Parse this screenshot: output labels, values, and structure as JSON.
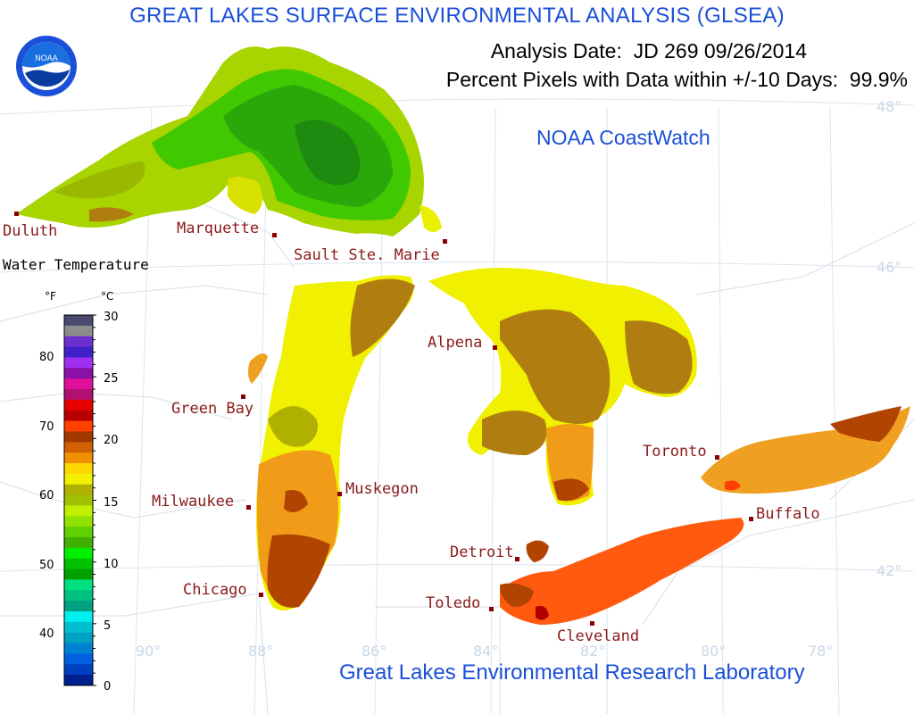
{
  "header": {
    "title": "GREAT LAKES SURFACE ENVIRONMENTAL ANALYSIS (GLSEA)",
    "analysis_date": "Analysis Date:  JD 269 09/26/2014",
    "percent_pixels": "Percent Pixels with Data within +/-10 Days:  99.9%",
    "coastwatch": "NOAA CoastWatch",
    "lab": "Great Lakes Environmental Research Laboratory"
  },
  "logo": {
    "text": "NOAA",
    "icon": "noaa-logo-icon"
  },
  "legend": {
    "title": "Water Temperature",
    "f_label": "°F",
    "c_label": "°C",
    "f_ticks": [
      "80",
      "70",
      "60",
      "50",
      "40"
    ],
    "c_ticks": [
      "30",
      "25",
      "20",
      "15",
      "10",
      "5",
      "0"
    ],
    "colors": [
      "#4a4a6e",
      "#8c8c8c",
      "#6e2fd0",
      "#4020c8",
      "#a030f0",
      "#8a10a8",
      "#e0109a",
      "#b01070",
      "#e80000",
      "#b80000",
      "#ff4000",
      "#a03800",
      "#d06000",
      "#f09000",
      "#ffd700",
      "#f0f000",
      "#b0b000",
      "#a0c000",
      "#c0f000",
      "#90e000",
      "#60d000",
      "#40b000",
      "#00f000",
      "#00c000",
      "#00a000",
      "#00e080",
      "#00c080",
      "#00a080",
      "#00f0f0",
      "#00c0d0",
      "#00a0c0",
      "#0080d0",
      "#0060e0",
      "#0040c0",
      "#002090"
    ]
  },
  "cities": {
    "duluth": "Duluth",
    "marquette": "Marquette",
    "sault": "Sault Ste. Marie",
    "alpena": "Alpena",
    "green_bay": "Green Bay",
    "milwaukee": "Milwaukee",
    "muskegon": "Muskegon",
    "toronto": "Toronto",
    "buffalo": "Buffalo",
    "detroit": "Detroit",
    "chicago": "Chicago",
    "toledo": "Toledo",
    "cleveland": "Cleveland"
  },
  "graticule": {
    "lat": [
      "48°",
      "46°",
      "42°"
    ],
    "lon": [
      "90°",
      "88°",
      "86°",
      "84°",
      "82°",
      "80°",
      "78°"
    ]
  },
  "colors": {
    "title": "#1a4fd8",
    "city": "#8b1a1a",
    "graticule": "#c8d8e8"
  }
}
